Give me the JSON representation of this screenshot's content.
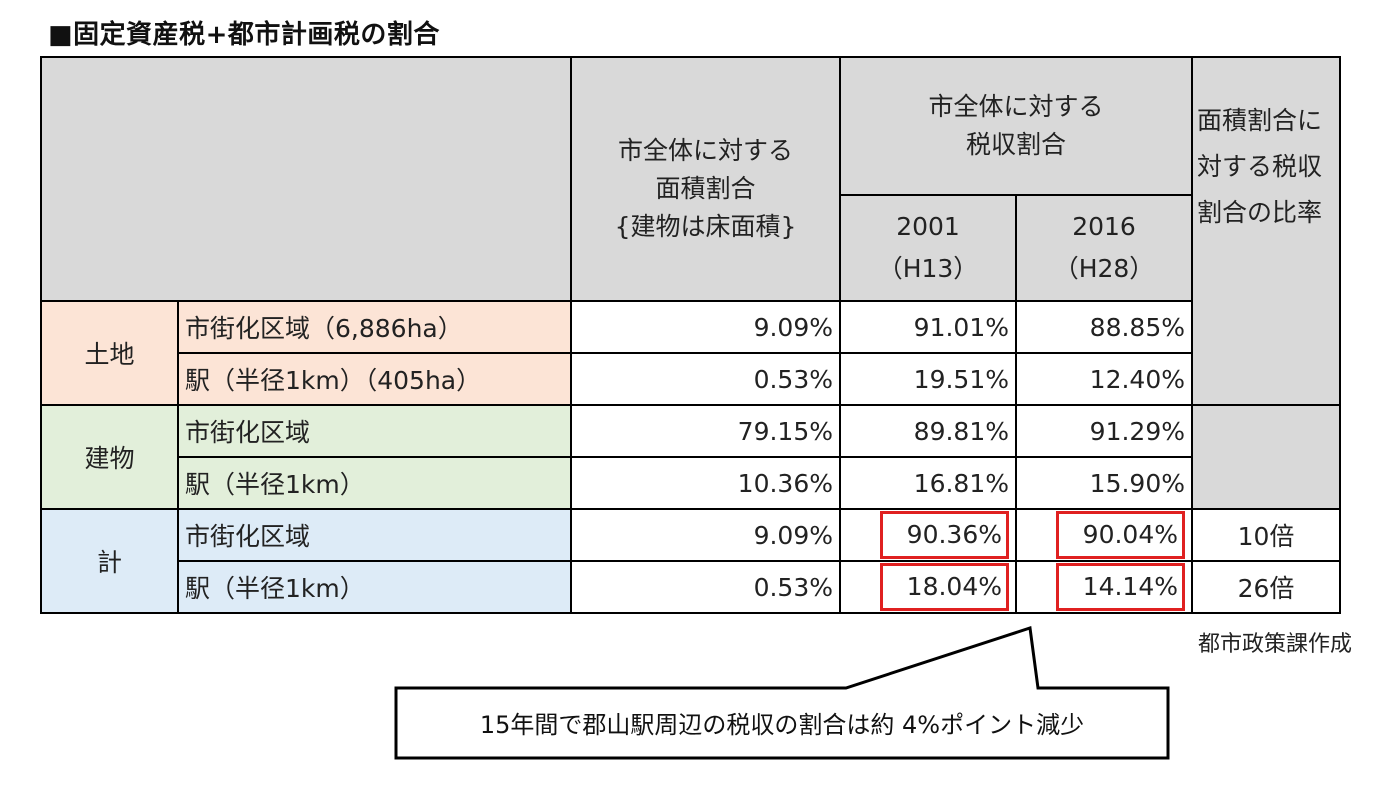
{
  "title": "■固定資産税+都市計画税の割合",
  "header": {
    "area_share": [
      "市全体に対する",
      "面積割合",
      "{建物は床面積}"
    ],
    "tax_share": [
      "市全体に対する",
      "税収割合"
    ],
    "year1": [
      "2001",
      "（H13）"
    ],
    "year2": [
      "2016",
      "（H28）"
    ],
    "ratio": [
      "面積割合に",
      "対する税収",
      "割合の比率"
    ]
  },
  "groups": [
    {
      "label": "土地",
      "rows": [
        {
          "name": "市街化区域（6,886ha）",
          "area": "9.09%",
          "y2001": "91.01%",
          "y2016": "88.85%"
        },
        {
          "name": "駅（半径1km）（405ha）",
          "area": "0.53%",
          "y2001": "19.51%",
          "y2016": "12.40%"
        }
      ]
    },
    {
      "label": "建物",
      "rows": [
        {
          "name": "市街化区域",
          "area": "79.15%",
          "y2001": "89.81%",
          "y2016": "91.29%"
        },
        {
          "name": "駅（半径1km）",
          "area": "10.36%",
          "y2001": "16.81%",
          "y2016": "15.90%"
        }
      ]
    },
    {
      "label": "計",
      "rows": [
        {
          "name": "市街化区域",
          "area": "9.09%",
          "y2001": "90.36%",
          "y2016": "90.04%",
          "ratio": "10倍"
        },
        {
          "name": "駅（半径1km）",
          "area": "0.53%",
          "y2001": "18.04%",
          "y2016": "14.14%",
          "ratio": "26倍"
        }
      ]
    }
  ],
  "credit": "都市政策課作成",
  "callout": "15年間で郡山駅周辺の税収の割合は約 4%ポイント減少",
  "colors": {
    "header_bg": "#d9d9d9",
    "land_bg": "#fce4d6",
    "building_bg": "#e2efda",
    "total_bg": "#ddebf7",
    "highlight_border": "#e02020"
  }
}
